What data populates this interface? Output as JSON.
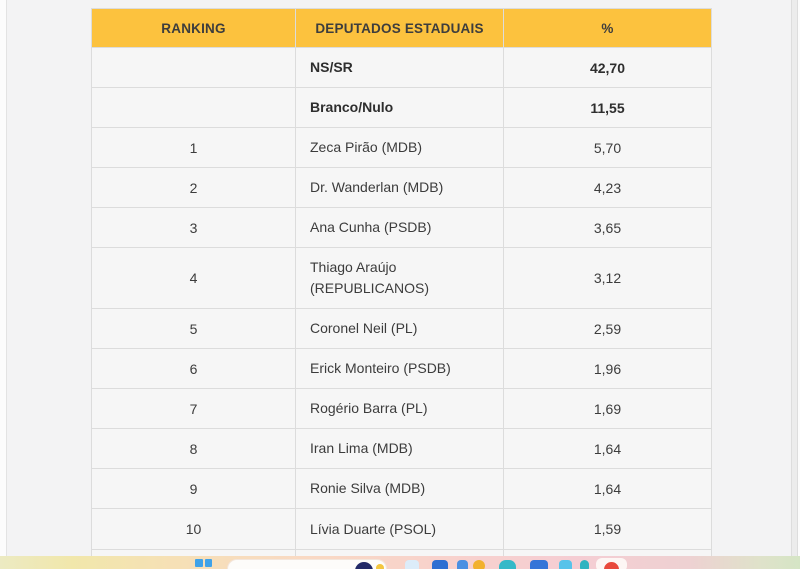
{
  "page": {
    "background": "#f3f3f4"
  },
  "table": {
    "header": {
      "cells": [
        "RANKING",
        "DEPUTADOS ESTADUAIS",
        "%"
      ],
      "bg": "#fcc23e",
      "text_color": "#3d3d3d"
    },
    "rows": [
      {
        "rank": "",
        "name": "NS/SR",
        "pct": "42,70"
      },
      {
        "rank": "",
        "name": "Branco/Nulo",
        "pct": "11,55"
      },
      {
        "rank": "1",
        "name": "Zeca Pirão (MDB)",
        "pct": "5,70"
      },
      {
        "rank": "2",
        "name": "Dr. Wanderlan (MDB)",
        "pct": "4,23"
      },
      {
        "rank": "3",
        "name": "Ana Cunha (PSDB)",
        "pct": "3,65"
      },
      {
        "rank": "4",
        "name": "Thiago Araújo (REPUBLICANOS)",
        "pct": "3,12"
      },
      {
        "rank": "5",
        "name": "Coronel Neil (PL)",
        "pct": "2,59"
      },
      {
        "rank": "6",
        "name": "Erick Monteiro (PSDB)",
        "pct": "1,96"
      },
      {
        "rank": "7",
        "name": "Rogério Barra (PL)",
        "pct": "1,69"
      },
      {
        "rank": "8",
        "name": "Iran Lima (MDB)",
        "pct": "1,64"
      },
      {
        "rank": "9",
        "name": "Ronie Silva (MDB)",
        "pct": "1,64"
      },
      {
        "rank": "10",
        "name": "Lívia Duarte (PSOL)",
        "pct": "1,59"
      }
    ]
  },
  "taskbar": {
    "start_color": "#3fa2e9",
    "search_pill_color": "#fdfcfa",
    "copilot_color": "#232a68",
    "spark_color": "#f3c63f",
    "apps": [
      {
        "name": "taskbar-app-1",
        "color": "#dcecf9"
      },
      {
        "name": "taskbar-app-2",
        "color": "#2e6fd2"
      },
      {
        "name": "taskbar-app-3",
        "color": "#4a90e2"
      },
      {
        "name": "taskbar-app-4",
        "color": "#f2b12e"
      },
      {
        "name": "taskbar-app-5",
        "color": "#35b9c8"
      },
      {
        "name": "taskbar-app-6",
        "color": "#3575d8"
      },
      {
        "name": "taskbar-app-7",
        "color": "#57c3ea"
      },
      {
        "name": "taskbar-app-8",
        "color": "#2fb3c0"
      }
    ],
    "recording": {
      "card_color": "#fdf6f4",
      "dot_color": "#e8493c"
    }
  }
}
